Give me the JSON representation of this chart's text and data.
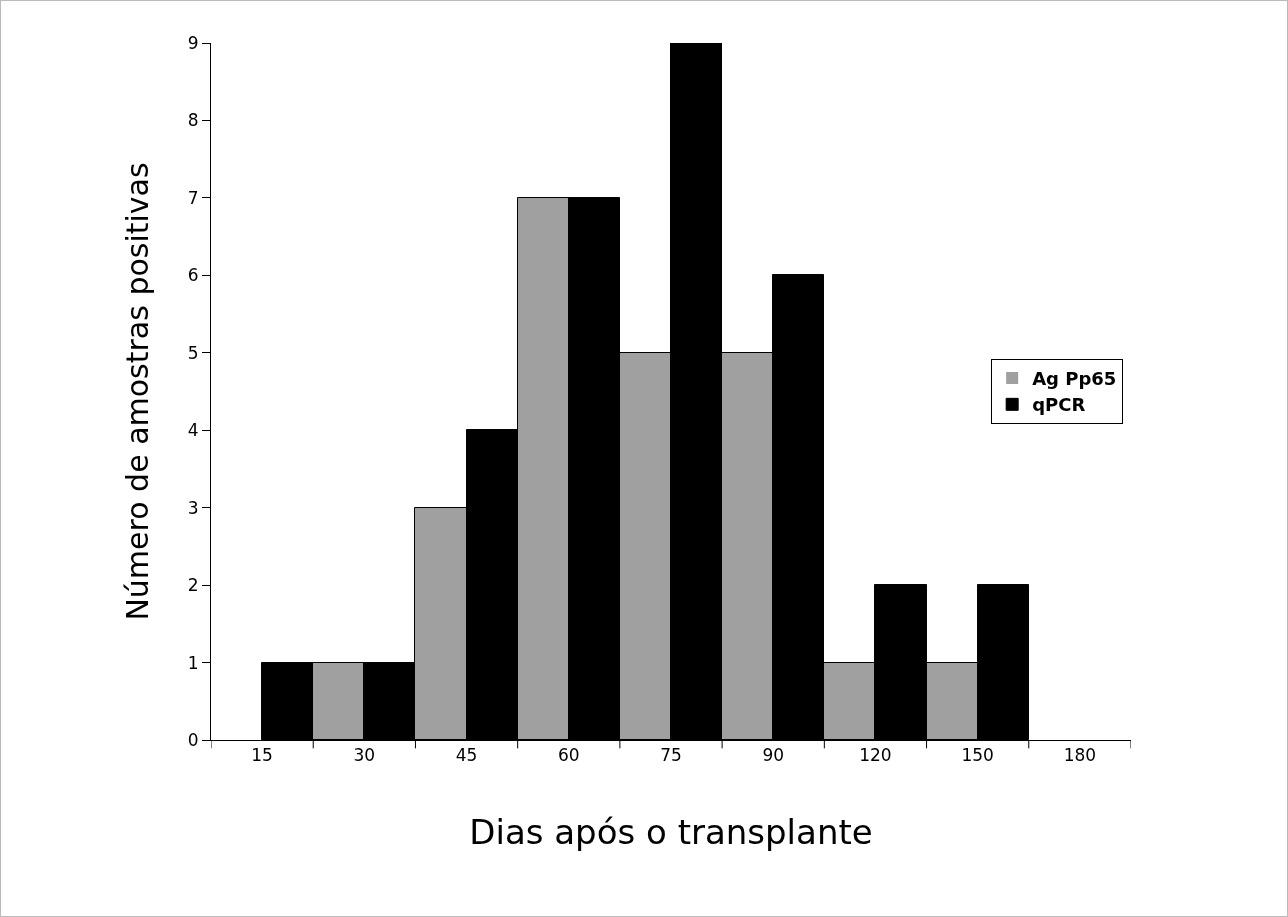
{
  "chart_data": {
    "type": "bar",
    "xlabel": "Dias após o transplante",
    "ylabel": "Número de amostras positivas",
    "categories": [
      "15",
      "30",
      "45",
      "60",
      "75",
      "90",
      "120",
      "150",
      "180"
    ],
    "series": [
      {
        "name": "Ag Pp65",
        "color": "#a0a0a0",
        "values": [
          0,
          1,
          3,
          7,
          5,
          5,
          1,
          1,
          0
        ]
      },
      {
        "name": "qPCR",
        "color": "#000000",
        "values": [
          1,
          1,
          4,
          7,
          9,
          6,
          2,
          2,
          0
        ]
      }
    ],
    "ylim": [
      0,
      9
    ],
    "yticks": [
      0,
      1,
      2,
      3,
      4,
      5,
      6,
      7,
      8,
      9
    ],
    "grid": false,
    "legend": "right"
  }
}
